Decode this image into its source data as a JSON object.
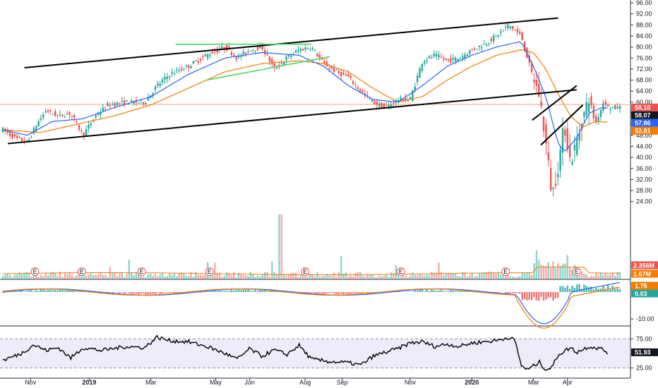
{
  "chart_data": {
    "type": "candlestick",
    "price_axis": {
      "ylim": [
        4,
        96
      ],
      "ticks": [
        "96.00",
        "92.00",
        "88.00",
        "84.00",
        "80.00",
        "76.00",
        "72.00",
        "68.00",
        "64.00",
        "60.00",
        "56.00",
        "52.00",
        "48.00",
        "44.00",
        "40.00",
        "36.00",
        "32.00",
        "28.00",
        "24.00"
      ]
    },
    "x_labels": [
      {
        "label": "Nov",
        "t": 0.045
      },
      {
        "label": "2019",
        "t": 0.14
      },
      {
        "label": "Mar",
        "t": 0.24
      },
      {
        "label": "May",
        "t": 0.345
      },
      {
        "label": "Jun",
        "t": 0.4
      },
      {
        "label": "Aug",
        "t": 0.49
      },
      {
        "label": "Sep",
        "t": 0.55
      },
      {
        "label": "Nov",
        "t": 0.66
      },
      {
        "label": "2020",
        "t": 0.76
      },
      {
        "label": "Mar",
        "t": 0.86
      },
      {
        "label": "Apr",
        "t": 0.915
      }
    ],
    "price_tags": [
      {
        "label": "58.10",
        "value": 58.1,
        "color": "#ef5350"
      },
      {
        "label": "58.07",
        "value": 58.07,
        "color": "#131722"
      },
      {
        "label": "57.86",
        "value": 57.86,
        "color": "#2962ff"
      },
      {
        "label": "52.81",
        "value": 52.81,
        "color": "#f57c00"
      }
    ],
    "horizontal_line": {
      "value": 59.2,
      "color": "#f7a47a"
    },
    "price_path": [
      [
        0,
        50
      ],
      [
        0.02,
        47
      ],
      [
        0.04,
        45.5
      ],
      [
        0.055,
        52
      ],
      [
        0.07,
        57
      ],
      [
        0.09,
        55
      ],
      [
        0.11,
        56
      ],
      [
        0.13,
        48
      ],
      [
        0.15,
        55
      ],
      [
        0.17,
        59
      ],
      [
        0.2,
        60
      ],
      [
        0.23,
        60
      ],
      [
        0.25,
        66
      ],
      [
        0.27,
        70
      ],
      [
        0.3,
        73
      ],
      [
        0.33,
        77
      ],
      [
        0.36,
        80
      ],
      [
        0.38,
        76
      ],
      [
        0.4,
        79
      ],
      [
        0.42,
        80
      ],
      [
        0.44,
        72
      ],
      [
        0.46,
        76
      ],
      [
        0.48,
        79
      ],
      [
        0.5,
        80
      ],
      [
        0.52,
        74
      ],
      [
        0.54,
        71
      ],
      [
        0.56,
        69
      ],
      [
        0.58,
        64
      ],
      [
        0.6,
        60
      ],
      [
        0.62,
        58
      ],
      [
        0.64,
        61
      ],
      [
        0.66,
        61
      ],
      [
        0.68,
        75
      ],
      [
        0.7,
        77
      ],
      [
        0.72,
        75
      ],
      [
        0.74,
        76
      ],
      [
        0.76,
        79
      ],
      [
        0.78,
        81
      ],
      [
        0.8,
        84
      ],
      [
        0.82,
        88
      ],
      [
        0.84,
        84
      ],
      [
        0.855,
        72
      ],
      [
        0.87,
        62
      ],
      [
        0.88,
        45
      ],
      [
        0.89,
        26
      ],
      [
        0.9,
        37
      ],
      [
        0.91,
        52
      ],
      [
        0.92,
        38
      ],
      [
        0.935,
        50
      ],
      [
        0.95,
        62
      ],
      [
        0.96,
        52
      ],
      [
        0.975,
        61
      ],
      [
        0.98,
        58.1
      ]
    ],
    "ma_fast_path": [
      [
        0,
        50
      ],
      [
        0.04,
        48
      ],
      [
        0.08,
        53
      ],
      [
        0.13,
        54
      ],
      [
        0.18,
        58
      ],
      [
        0.24,
        62
      ],
      [
        0.3,
        70
      ],
      [
        0.36,
        76
      ],
      [
        0.42,
        78
      ],
      [
        0.48,
        77
      ],
      [
        0.52,
        73
      ],
      [
        0.56,
        66
      ],
      [
        0.6,
        61
      ],
      [
        0.64,
        60
      ],
      [
        0.68,
        66
      ],
      [
        0.72,
        73
      ],
      [
        0.76,
        77
      ],
      [
        0.8,
        80
      ],
      [
        0.84,
        82
      ],
      [
        0.86,
        73
      ],
      [
        0.88,
        62
      ],
      [
        0.9,
        45
      ],
      [
        0.91,
        42
      ],
      [
        0.93,
        47
      ],
      [
        0.95,
        56
      ],
      [
        0.97,
        58
      ],
      [
        0.98,
        57.86
      ]
    ],
    "ma_slow_path": [
      [
        0,
        50
      ],
      [
        0.06,
        49
      ],
      [
        0.12,
        52
      ],
      [
        0.18,
        55
      ],
      [
        0.24,
        59
      ],
      [
        0.3,
        65
      ],
      [
        0.36,
        71
      ],
      [
        0.42,
        74
      ],
      [
        0.48,
        75
      ],
      [
        0.52,
        74
      ],
      [
        0.56,
        71
      ],
      [
        0.6,
        65
      ],
      [
        0.64,
        60
      ],
      [
        0.68,
        62
      ],
      [
        0.72,
        68
      ],
      [
        0.76,
        73
      ],
      [
        0.8,
        77
      ],
      [
        0.84,
        79
      ],
      [
        0.86,
        78
      ],
      [
        0.88,
        72
      ],
      [
        0.9,
        63
      ],
      [
        0.92,
        55
      ],
      [
        0.94,
        51
      ],
      [
        0.96,
        53
      ],
      [
        0.98,
        52.81
      ]
    ],
    "drawings": [
      {
        "name": "upper-channel-line",
        "color": "#000000",
        "from": [
          0.035,
          72.5
        ],
        "to": [
          0.9,
          90.5
        ]
      },
      {
        "name": "lower-channel-line",
        "color": "#000000",
        "from": [
          0.008,
          45
        ],
        "to": [
          0.93,
          64.5
        ]
      },
      {
        "name": "resistance-line",
        "color": "#4cd964",
        "from": [
          0.28,
          81
        ],
        "to": [
          0.5,
          81
        ]
      },
      {
        "name": "triangle-lower-line",
        "color": "#4cd964",
        "from": [
          0.33,
          68
        ],
        "to": [
          0.53,
          76.5
        ]
      },
      {
        "name": "wedge-upper-line",
        "color": "#000000",
        "from": [
          0.858,
          53.5
        ],
        "to": [
          0.93,
          66
        ]
      },
      {
        "name": "wedge-lower-line",
        "color": "#000000",
        "from": [
          0.872,
          44.5
        ],
        "to": [
          0.94,
          59
        ]
      }
    ],
    "volume": {
      "tags": [
        {
          "label": "2.356M",
          "color": "#ef5350"
        },
        {
          "label": "1.67M",
          "color": "#f57c00"
        }
      ],
      "earnings_marker": "E",
      "earnings_t": [
        0.052,
        0.128,
        0.225,
        0.335,
        0.49,
        0.645,
        0.815,
        0.93
      ]
    },
    "macd": {
      "ticks": [
        "-10.00"
      ],
      "tags": [
        {
          "label": "1.75",
          "color": "#f57c00"
        },
        {
          "label": "0.03",
          "color": "#26a69a"
        }
      ]
    },
    "rsi": {
      "ticks": [
        "75.00",
        "25.00"
      ],
      "upper": 75,
      "lower": 25,
      "tag": {
        "label": "51.93",
        "color": "#131722"
      },
      "path": [
        [
          0,
          38
        ],
        [
          0.03,
          50
        ],
        [
          0.05,
          65
        ],
        [
          0.07,
          55
        ],
        [
          0.09,
          60
        ],
        [
          0.11,
          42
        ],
        [
          0.13,
          60
        ],
        [
          0.16,
          55
        ],
        [
          0.2,
          62
        ],
        [
          0.23,
          60
        ],
        [
          0.25,
          78
        ],
        [
          0.27,
          72
        ],
        [
          0.3,
          70
        ],
        [
          0.33,
          62
        ],
        [
          0.36,
          50
        ],
        [
          0.38,
          40
        ],
        [
          0.4,
          58
        ],
        [
          0.42,
          45
        ],
        [
          0.44,
          56
        ],
        [
          0.46,
          48
        ],
        [
          0.48,
          64
        ],
        [
          0.5,
          40
        ],
        [
          0.53,
          36
        ],
        [
          0.56,
          34
        ],
        [
          0.58,
          30
        ],
        [
          0.6,
          45
        ],
        [
          0.62,
          52
        ],
        [
          0.64,
          58
        ],
        [
          0.66,
          68
        ],
        [
          0.68,
          70
        ],
        [
          0.7,
          62
        ],
        [
          0.72,
          66
        ],
        [
          0.74,
          62
        ],
        [
          0.76,
          68
        ],
        [
          0.78,
          70
        ],
        [
          0.8,
          72
        ],
        [
          0.82,
          78
        ],
        [
          0.83,
          72
        ],
        [
          0.84,
          30
        ],
        [
          0.85,
          22
        ],
        [
          0.87,
          35
        ],
        [
          0.88,
          22
        ],
        [
          0.89,
          26
        ],
        [
          0.9,
          48
        ],
        [
          0.92,
          60
        ],
        [
          0.93,
          52
        ],
        [
          0.95,
          62
        ],
        [
          0.97,
          58
        ],
        [
          0.98,
          51.93
        ]
      ]
    }
  }
}
